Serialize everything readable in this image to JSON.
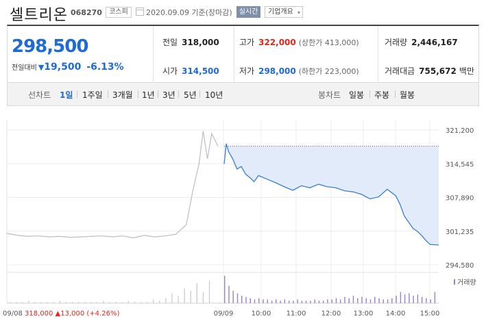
{
  "header": {
    "name": "셀트리온",
    "code": "068270",
    "market": "코스피",
    "date": "2020.09.09  기준(장마감)",
    "realtime": "실시간",
    "company_info": "기업개요"
  },
  "price": {
    "current": "298,500",
    "change_label": "전일대비",
    "change_arrow": "▼",
    "change_value": "19,500",
    "change_pct": "-6.13%"
  },
  "stats": {
    "prev_close": {
      "label": "전일",
      "value": "318,000"
    },
    "high": {
      "label": "고가",
      "value": "322,000",
      "sub": "(상한가 413,000)"
    },
    "volume": {
      "label": "거래량",
      "value": "2,446,167"
    },
    "open": {
      "label": "시가",
      "value": "314,500"
    },
    "low": {
      "label": "저가",
      "value": "298,000",
      "sub": "(하한가 223,000)"
    },
    "amount": {
      "label": "거래대금",
      "value": "755,672",
      "unit": "백만"
    }
  },
  "periods": {
    "line_label": "선차트",
    "line_items": [
      "1일",
      "1주일",
      "3개월",
      "1년",
      "3년",
      "5년",
      "10년"
    ],
    "active": "1일",
    "candle_label": "봉차트",
    "candle_items": [
      "일봉",
      "주봉",
      "월봉"
    ]
  },
  "colors": {
    "accent_blue": "#1e6ad6",
    "up_red": "#e0261e",
    "line_blue": "#3b7dd8",
    "fill_blue": "#e1ebfa",
    "prev_gray": "#bdbdbd",
    "volume_purple": "#9a7fc1"
  },
  "chart_data": {
    "type": "line",
    "y_ticks": [
      321200,
      314545,
      307890,
      301235,
      294580
    ],
    "y_tick_labels": [
      "321,200",
      "314,545",
      "307,890",
      "301,235",
      "294,580"
    ],
    "ylim": [
      294580,
      321200
    ],
    "x_ticks": [
      "09/09",
      "10:00",
      "11:00",
      "12:00",
      "13:00",
      "14:00",
      "15:00"
    ],
    "prev_close_reference": 318000,
    "volume_label": "거래량",
    "prev_day_summary": {
      "date": "09/08",
      "close": "318,000",
      "arrow": "▲",
      "change": "13,000 (+4.26%)"
    },
    "series": [
      {
        "day": "09/08",
        "x": [
          0,
          0.05,
          0.1,
          0.15,
          0.2,
          0.25,
          0.3,
          0.35,
          0.4,
          0.45,
          0.5,
          0.55,
          0.6,
          0.65,
          0.7,
          0.75,
          0.8,
          0.85,
          0.88,
          0.91,
          0.93,
          0.95,
          0.97,
          1.0
        ],
        "values": [
          300800,
          300400,
          300200,
          300300,
          300100,
          300200,
          300000,
          300100,
          300200,
          300300,
          300100,
          300300,
          299900,
          300400,
          300100,
          300300,
          300600,
          302500,
          309000,
          314500,
          321000,
          315500,
          320500,
          318000
        ]
      },
      {
        "day": "09/09",
        "x": [
          0,
          0.01,
          0.02,
          0.04,
          0.06,
          0.08,
          0.1,
          0.12,
          0.14,
          0.16,
          0.2,
          0.24,
          0.28,
          0.32,
          0.36,
          0.4,
          0.44,
          0.48,
          0.52,
          0.56,
          0.6,
          0.64,
          0.68,
          0.72,
          0.76,
          0.8,
          0.82,
          0.84,
          0.86,
          0.88,
          0.9,
          0.92,
          0.94,
          0.96,
          1.0
        ],
        "values": [
          314500,
          318500,
          317000,
          315500,
          313500,
          314000,
          312500,
          311800,
          311000,
          312200,
          311500,
          310800,
          310000,
          309300,
          310200,
          309800,
          310500,
          310000,
          309800,
          309200,
          309000,
          308500,
          307600,
          308000,
          309500,
          308200,
          306500,
          304200,
          303000,
          301800,
          301200,
          300400,
          299400,
          298600,
          298500
        ]
      }
    ],
    "volume": {
      "prev_day": [
        1,
        1,
        1,
        2,
        1,
        1,
        1,
        1,
        2,
        1,
        1,
        1,
        1,
        1,
        1,
        2,
        1,
        1,
        1,
        2,
        1,
        1,
        1,
        3,
        2,
        4,
        8,
        6,
        12,
        10,
        16,
        9,
        18
      ],
      "today": [
        22,
        14,
        10,
        8,
        6,
        5,
        4,
        3,
        4,
        3,
        3,
        2,
        3,
        2,
        3,
        2,
        2,
        3,
        2,
        2,
        2,
        3,
        2,
        2,
        3,
        3,
        4,
        3,
        5,
        4,
        6,
        4,
        5,
        4,
        3,
        5,
        4,
        3,
        3,
        4,
        6,
        9,
        7,
        8,
        6,
        7,
        5,
        4,
        3,
        9
      ]
    }
  }
}
